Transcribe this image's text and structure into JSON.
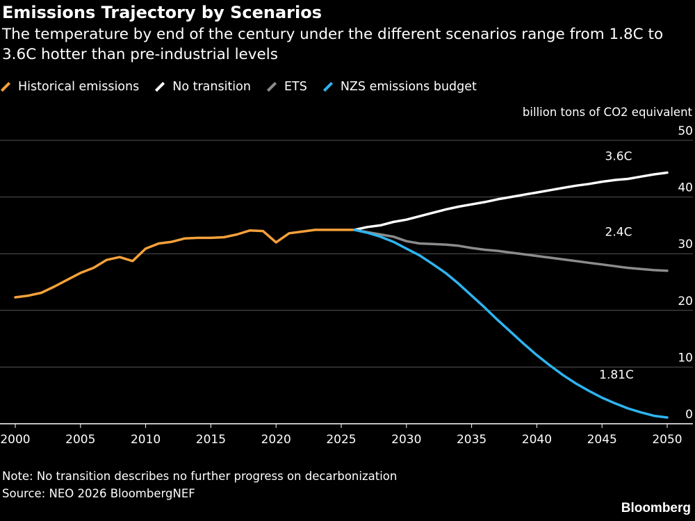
{
  "header": {
    "title": "Emissions Trajectory by Scenarios",
    "subtitle": "The temperature by end of the century under the different scenarios range from 1.8C to 3.6C hotter than pre-industrial levels"
  },
  "footer": {
    "note": "Note: No transition describes no further progress on decarbonization",
    "source": "Source: NEO 2026 BloombergNEF",
    "logo": "Bloomberg"
  },
  "chart_data": {
    "type": "line",
    "title": "Emissions Trajectory by Scenarios",
    "ylabel": "billion tons of CO2 equivalent",
    "xlabel": "",
    "xlim": [
      2000,
      2050
    ],
    "ylim": [
      0,
      50
    ],
    "x_ticks": [
      2000,
      2005,
      2010,
      2015,
      2020,
      2025,
      2030,
      2035,
      2040,
      2045,
      2050
    ],
    "y_ticks": [
      0,
      10,
      20,
      30,
      40,
      50
    ],
    "grid": "horizontal",
    "legend_position": "top-left",
    "background": "#000000",
    "series": [
      {
        "name": "Historical emissions",
        "color": "#f5a13a",
        "x": [
          2000,
          2001,
          2002,
          2003,
          2004,
          2005,
          2006,
          2007,
          2008,
          2009,
          2010,
          2011,
          2012,
          2013,
          2014,
          2015,
          2016,
          2017,
          2018,
          2019,
          2020,
          2021,
          2022,
          2023,
          2024,
          2025,
          2026
        ],
        "y": [
          22.3,
          22.6,
          23.1,
          24.2,
          25.4,
          26.6,
          27.5,
          28.9,
          29.4,
          28.7,
          30.9,
          31.8,
          32.1,
          32.7,
          32.8,
          32.8,
          32.9,
          33.4,
          34.1,
          34.0,
          32.0,
          33.6,
          33.9,
          34.2,
          34.2,
          34.2,
          34.2
        ]
      },
      {
        "name": "No transition",
        "color": "#ffffff",
        "label": "3.6C",
        "x": [
          2026,
          2027,
          2028,
          2029,
          2030,
          2031,
          2032,
          2033,
          2034,
          2035,
          2036,
          2037,
          2038,
          2039,
          2040,
          2041,
          2042,
          2043,
          2044,
          2045,
          2046,
          2047,
          2048,
          2049,
          2050
        ],
        "y": [
          34.2,
          34.7,
          35.0,
          35.6,
          36.0,
          36.6,
          37.2,
          37.8,
          38.3,
          38.7,
          39.1,
          39.6,
          40.0,
          40.4,
          40.8,
          41.2,
          41.6,
          42.0,
          42.3,
          42.7,
          43.0,
          43.2,
          43.6,
          44.0,
          44.3
        ]
      },
      {
        "name": "ETS",
        "color": "#8c8c8c",
        "label": "2.4C",
        "x": [
          2026,
          2027,
          2028,
          2029,
          2030,
          2031,
          2032,
          2033,
          2034,
          2035,
          2036,
          2037,
          2038,
          2039,
          2040,
          2041,
          2042,
          2043,
          2044,
          2045,
          2046,
          2047,
          2048,
          2049,
          2050
        ],
        "y": [
          34.2,
          33.8,
          33.4,
          33.0,
          32.2,
          31.8,
          31.7,
          31.6,
          31.4,
          31.0,
          30.7,
          30.5,
          30.2,
          29.9,
          29.6,
          29.3,
          29.0,
          28.7,
          28.4,
          28.1,
          27.8,
          27.5,
          27.3,
          27.1,
          27.0
        ]
      },
      {
        "name": "NZS emissions budget",
        "color": "#2eb4f0",
        "label": "1.81C",
        "x": [
          2026,
          2027,
          2028,
          2029,
          2030,
          2031,
          2032,
          2033,
          2034,
          2035,
          2036,
          2037,
          2038,
          2039,
          2040,
          2041,
          2042,
          2043,
          2044,
          2045,
          2046,
          2047,
          2048,
          2049,
          2050
        ],
        "y": [
          34.2,
          33.7,
          33.0,
          32.1,
          30.9,
          29.7,
          28.2,
          26.6,
          24.7,
          22.6,
          20.5,
          18.3,
          16.2,
          14.1,
          12.1,
          10.3,
          8.6,
          7.1,
          5.8,
          4.6,
          3.6,
          2.7,
          2.0,
          1.4,
          1.1
        ]
      }
    ]
  }
}
